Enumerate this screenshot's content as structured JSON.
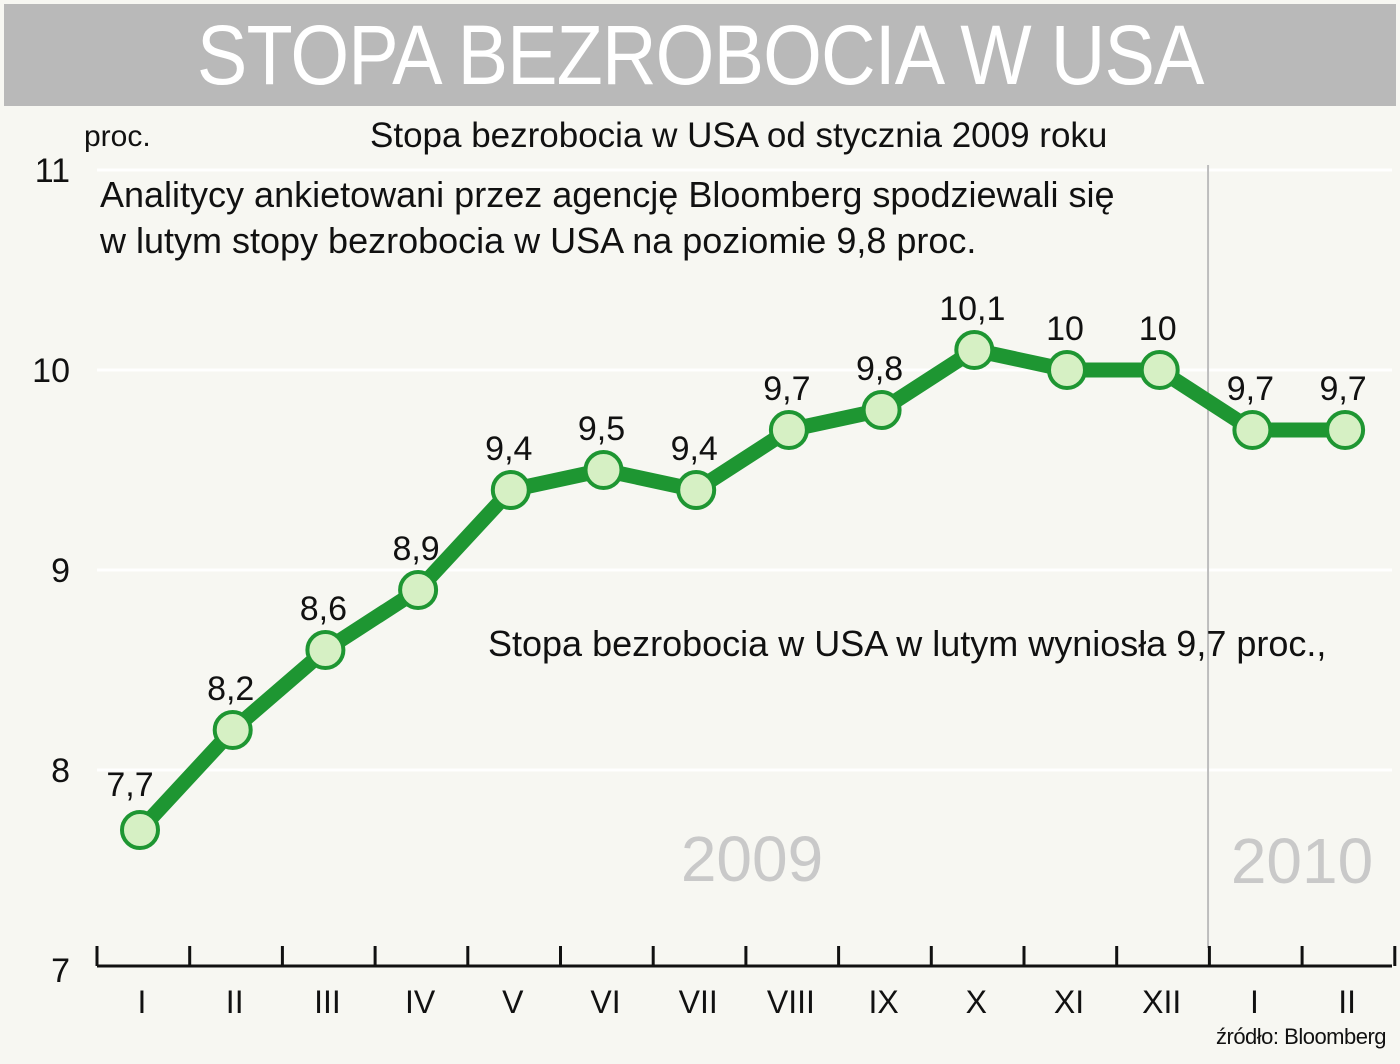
{
  "header": {
    "title": "STOPA BEZROBOCIA W USA"
  },
  "chart_data": {
    "type": "line",
    "title": "Stopa bezrobocia w USA od stycznia 2009 roku",
    "ylabel": "proc.",
    "ylim": [
      7,
      11
    ],
    "yticks": [
      "7",
      "8",
      "9",
      "10",
      "11"
    ],
    "categories": [
      "I",
      "II",
      "III",
      "IV",
      "V",
      "VI",
      "VII",
      "VIII",
      "IX",
      "X",
      "XI",
      "XII",
      "I",
      "II"
    ],
    "values": [
      7.7,
      8.2,
      8.6,
      8.9,
      9.4,
      9.5,
      9.4,
      9.7,
      9.8,
      10.1,
      10,
      10,
      9.7,
      9.7
    ],
    "data_labels": [
      "7,7",
      "8,2",
      "8,6",
      "8,9",
      "9,4",
      "9,5",
      "9,4",
      "9,7",
      "9,8",
      "10,1",
      "10",
      "10",
      "9,7",
      "9,7"
    ],
    "year_labels": [
      "2009",
      "2010"
    ],
    "annotations": [
      "Analitycy ankietowani przez agencję Bloomberg spodziewali się",
      "w lutym stopy bezrobocia w USA na poziomie 9,8 proc.",
      "Stopa bezrobocia w USA w lutym wyniosła 9,7 proc.,"
    ],
    "source": "źródło: Bloomberg",
    "grid": true,
    "colors": {
      "line": "#1e9632",
      "marker_fill": "#d6f0c4",
      "grid": "#ffffff",
      "year_label": "#c9c9c9",
      "divider": "#bdbdbd"
    }
  }
}
